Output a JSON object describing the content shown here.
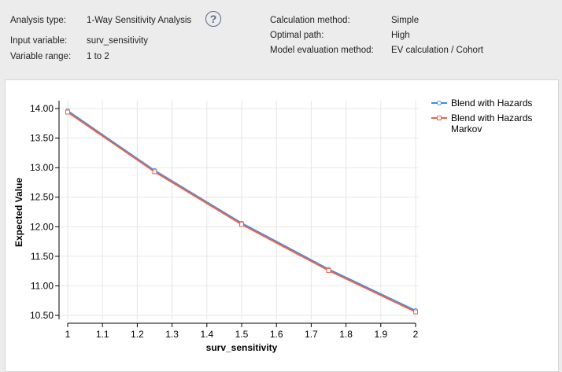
{
  "info": {
    "analysis_type_label": "Analysis type:",
    "analysis_type": "1-Way Sensitivity Analysis",
    "input_variable_label": "Input variable:",
    "input_variable": "surv_sensitivity",
    "variable_range_label": "Variable range:",
    "variable_range": "1 to 2",
    "calc_method_label": "Calculation method:",
    "calc_method": "Simple",
    "optimal_path_label": "Optimal path:",
    "optimal_path": "High",
    "model_eval_label": "Model evaluation method:",
    "model_eval": "EV calculation / Cohort",
    "help_glyph": "?"
  },
  "chart_data": {
    "type": "line",
    "xlabel": "surv_sensitivity",
    "ylabel": "Expected Value",
    "xlim": [
      1,
      2
    ],
    "ylim": [
      10.5,
      14.0
    ],
    "xticks": [
      "1",
      "1.1",
      "1.2",
      "1.3",
      "1.4",
      "1.5",
      "1.6",
      "1.7",
      "1.8",
      "1.9",
      "2"
    ],
    "yticks": [
      "10.50",
      "11.00",
      "11.50",
      "12.00",
      "12.50",
      "13.00",
      "13.50",
      "14.00"
    ],
    "x": [
      1,
      1.25,
      1.5,
      1.75,
      2
    ],
    "series": [
      {
        "name": "Blend with Hazards",
        "color": "#3a8ee6",
        "marker": "circle",
        "values": [
          13.96,
          12.95,
          12.06,
          11.28,
          10.58
        ]
      },
      {
        "name": "Blend with Hazards Markov",
        "name_lines": [
          "Blend with Hazards",
          "Markov"
        ],
        "color": "#f0604a",
        "marker": "square",
        "values": [
          13.94,
          12.93,
          12.04,
          11.26,
          10.56
        ]
      }
    ],
    "grid": true,
    "legend": "top-right"
  }
}
